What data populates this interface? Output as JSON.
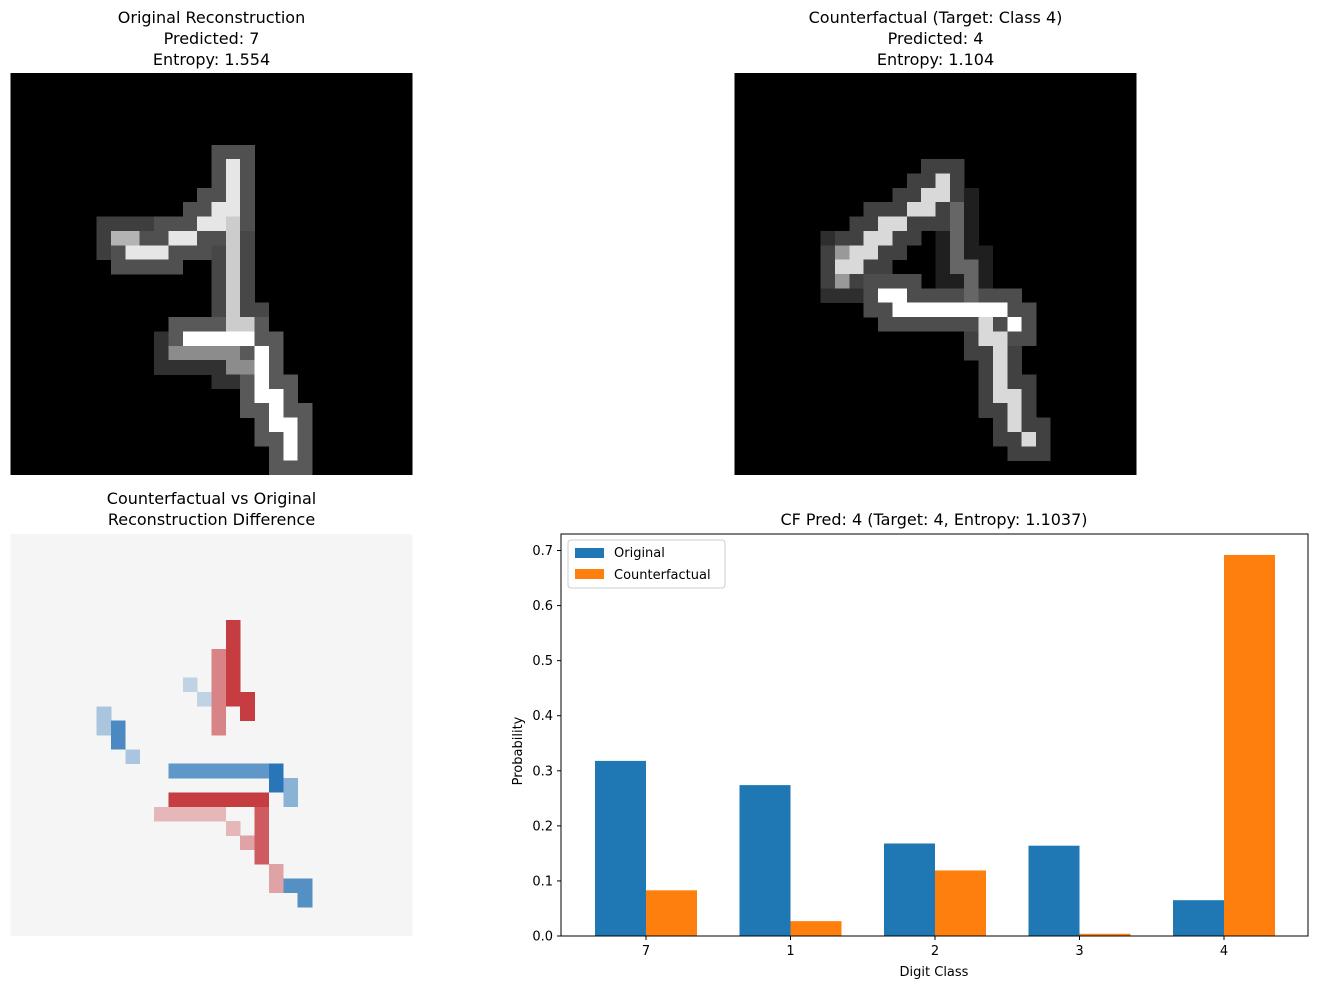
{
  "panels": {
    "original": {
      "title": "Original Reconstruction\nPredicted: 7\nEntropy: 1.554"
    },
    "counterfactual": {
      "title": "Counterfactual (Target: Class 4)\nPredicted: 4\nEntropy: 1.104"
    },
    "difference": {
      "title": "Counterfactual vs Original\nReconstruction Difference"
    }
  },
  "colors": {
    "original": "#1f77b4",
    "counterfactual": "#ff7f0e",
    "diff_pos": "#c0272d",
    "diff_neg": "#1f6eb5",
    "diff_bg": "#f5f5f5"
  },
  "chart_data": {
    "type": "bar",
    "title": "CF Pred: 4 (Target: 4, Entropy: 1.1037)",
    "xlabel": "Digit Class",
    "ylabel": "Probability",
    "categories": [
      "7",
      "1",
      "2",
      "3",
      "4"
    ],
    "series": [
      {
        "name": "Original",
        "values": [
          0.318,
          0.274,
          0.168,
          0.164,
          0.065
        ]
      },
      {
        "name": "Counterfactual",
        "values": [
          0.083,
          0.027,
          0.119,
          0.004,
          0.692
        ]
      }
    ],
    "ylim": [
      0,
      0.73
    ],
    "yticks": [
      "0.0",
      "0.1",
      "0.2",
      "0.3",
      "0.4",
      "0.5",
      "0.6",
      "0.7"
    ],
    "grid": false,
    "legend": "top-left"
  }
}
